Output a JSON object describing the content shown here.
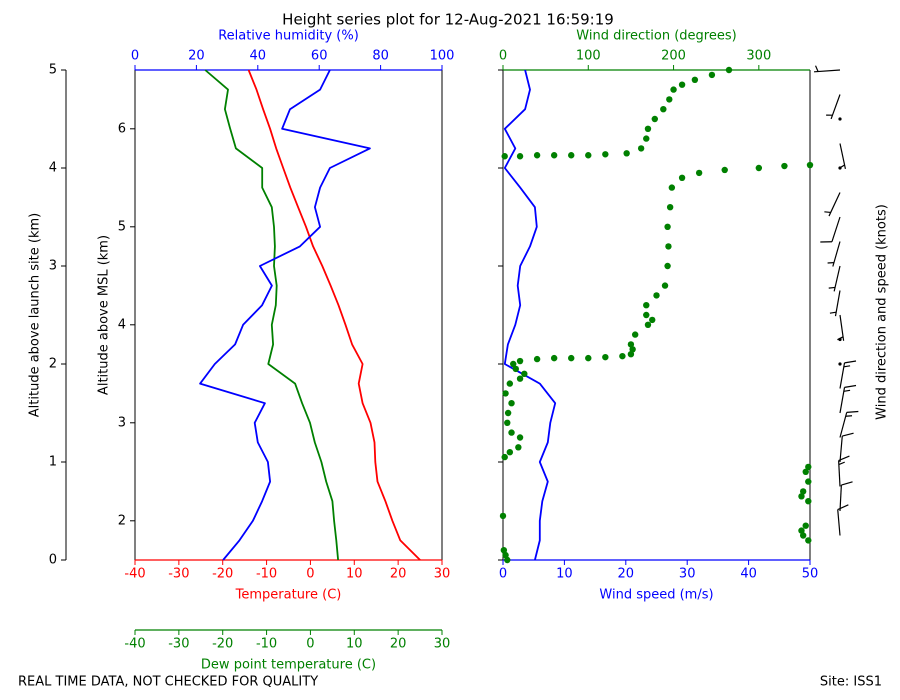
{
  "title": "Height series plot for 12-Aug-2021 16:59:19",
  "chart_data": [
    {
      "type": "profile",
      "y_axes": [
        {
          "label": "Altitude above launch site (km)",
          "ylim": [
            0,
            5
          ],
          "yticks": [
            0,
            1,
            2,
            3,
            4,
            5
          ],
          "placement": "outer"
        },
        {
          "label": "Altitude above MSL (km)",
          "ylim": [
            1.6,
            6.6
          ],
          "yticks": [
            2,
            3,
            4,
            5,
            6
          ],
          "placement": "spine"
        }
      ],
      "x_axes": [
        {
          "label": "Temperature (C)",
          "xlim": [
            -40,
            30
          ],
          "xticks": [
            -40,
            -30,
            -20,
            -10,
            0,
            10,
            20,
            30
          ],
          "color": "#ff0000",
          "side": "bottom"
        },
        {
          "label": "Dew point temperature (C)",
          "xlim": [
            -40,
            30
          ],
          "xticks": [
            -40,
            -30,
            -20,
            -10,
            0,
            10,
            20,
            30
          ],
          "color": "#008000",
          "side": "bottom"
        },
        {
          "label": "Relative humidity (%)",
          "xlim": [
            0,
            100
          ],
          "xticks": [
            0,
            20,
            40,
            60,
            80,
            100
          ],
          "color": "#0000ff",
          "side": "top"
        }
      ],
      "altitude": [
        0,
        0.2,
        0.4,
        0.6,
        0.8,
        1.0,
        1.2,
        1.4,
        1.6,
        1.8,
        2.0,
        2.2,
        2.4,
        2.6,
        2.8,
        3.0,
        3.2,
        3.4,
        3.6,
        3.8,
        4.0,
        4.2,
        4.4,
        4.6,
        4.8,
        5.0
      ],
      "series": [
        {
          "axis": 0,
          "mode": "line",
          "color": "#ff0000",
          "values": [
            25,
            20.5,
            18.7,
            17.1,
            15.3,
            14.8,
            14.6,
            13.7,
            11.9,
            11.0,
            11.9,
            9.5,
            8.0,
            6.4,
            4.6,
            2.7,
            0.6,
            -1.0,
            -2.8,
            -4.6,
            -6.2,
            -7.8,
            -9.2,
            -10.8,
            -12.3,
            -14.1
          ]
        },
        {
          "axis": 1,
          "mode": "line",
          "color": "#008000",
          "values": [
            6.3,
            5.9,
            5.4,
            5.0,
            3.6,
            2.5,
            1.0,
            -0.1,
            -1.9,
            -3.5,
            -9.6,
            -8.5,
            -8.8,
            -7.9,
            -7.7,
            -8.3,
            -8.1,
            -8.3,
            -8.8,
            -11.0,
            -11.0,
            -17.0,
            -18.3,
            -19.5,
            -18.8,
            -24
          ]
        },
        {
          "axis": 2,
          "mode": "line",
          "color": "#0000ff",
          "values": [
            28.7,
            34,
            38.4,
            41.4,
            44,
            43.3,
            40,
            39,
            42.3,
            21.2,
            26,
            32.6,
            35.2,
            41.4,
            44.6,
            40.7,
            53.7,
            60.3,
            58.6,
            60.3,
            63.5,
            76.5,
            47.9,
            50.5,
            60.3,
            63.5
          ]
        }
      ]
    },
    {
      "type": "profile",
      "y_axes": [
        {
          "ylim": [
            0,
            5
          ],
          "yticks": [
            0,
            1,
            2,
            3,
            4,
            5
          ],
          "placement": "spine",
          "tick_labels": false
        }
      ],
      "x_axes": [
        {
          "label": "Wind speed (m/s)",
          "xlim": [
            0,
            50
          ],
          "xticks": [
            0,
            10,
            20,
            30,
            40,
            50
          ],
          "color": "#0000ff",
          "side": "bottom"
        },
        {
          "label": "Wind direction (degrees)",
          "xlim": [
            0,
            360
          ],
          "xticks": [
            0,
            100,
            200,
            300
          ],
          "color": "#008000",
          "side": "top"
        }
      ],
      "altitude": [
        0,
        0.2,
        0.4,
        0.6,
        0.8,
        1.0,
        1.2,
        1.4,
        1.6,
        1.8,
        2.0,
        2.2,
        2.4,
        2.6,
        2.8,
        3.0,
        3.2,
        3.4,
        3.6,
        3.8,
        4.0,
        4.2,
        4.4,
        4.6,
        4.8,
        5.0
      ],
      "series": [
        {
          "axis": 0,
          "mode": "line",
          "color": "#0000ff",
          "values": [
            5.2,
            6.0,
            6.0,
            6.4,
            7.3,
            6.0,
            7.3,
            7.7,
            8.5,
            6.0,
            0.3,
            0.8,
            2.0,
            2.8,
            2.4,
            2.8,
            4.4,
            5.5,
            5.2,
            2.8,
            0.3,
            2.0,
            0.3,
            3.6,
            4.4,
            3.6
          ]
        },
        {
          "axis": 1,
          "mode": "dots",
          "color": "#008000",
          "altitude": [
            0.0,
            0.05,
            0.1,
            0.2,
            0.25,
            0.3,
            0.35,
            0.45,
            0.6,
            0.65,
            0.7,
            0.8,
            0.9,
            0.95,
            1.05,
            1.1,
            1.15,
            1.25,
            1.3,
            1.4,
            1.5,
            1.6,
            1.7,
            1.8,
            1.85,
            1.9,
            1.95,
            2.0,
            2.03,
            2.05,
            2.06,
            2.06,
            2.06,
            2.07,
            2.08,
            2.1,
            2.15,
            2.2,
            2.3,
            2.4,
            2.45,
            2.5,
            2.6,
            2.7,
            2.8,
            3.0,
            3.2,
            3.4,
            3.6,
            3.8,
            3.9,
            3.95,
            3.98,
            4.0,
            4.02,
            4.03,
            4.12,
            4.12,
            4.13,
            4.13,
            4.13,
            4.13,
            4.14,
            4.15,
            4.2,
            4.3,
            4.4,
            4.5,
            4.6,
            4.7,
            4.8,
            4.85,
            4.9,
            4.95,
            5.0
          ],
          "values": [
            5,
            3,
            1,
            358,
            352,
            350,
            355,
            0,
            358,
            350,
            352,
            358,
            355,
            358,
            2,
            8,
            18,
            20,
            10,
            5,
            6,
            10,
            3,
            8,
            20,
            25,
            15,
            12,
            20,
            40,
            60,
            80,
            100,
            120,
            140,
            150,
            152,
            150,
            155,
            170,
            175,
            168,
            168,
            180,
            190,
            193,
            194,
            193,
            196,
            198,
            210,
            230,
            260,
            300,
            330,
            360,
            2,
            20,
            40,
            60,
            80,
            100,
            120,
            145,
            162,
            168,
            170,
            178,
            188,
            195,
            200,
            210,
            225,
            245,
            265
          ]
        }
      ]
    },
    {
      "type": "barbs",
      "label": "Wind direction and speed (knots)",
      "ylim": [
        0,
        5
      ],
      "color": "#000000",
      "altitude": [
        0.25,
        0.5,
        0.75,
        1.0,
        1.25,
        1.5,
        1.75,
        2.0,
        2.25,
        2.5,
        2.75,
        3.0,
        3.25,
        3.5,
        3.75,
        4.0,
        4.25,
        4.5,
        4.75,
        5.0
      ],
      "direction": [
        355,
        3,
        357,
        5,
        15,
        10,
        10,
        25,
        150,
        172,
        190,
        193,
        196,
        198,
        205,
        300,
        168,
        180,
        200,
        266
      ],
      "speed": [
        12,
        12,
        14,
        12,
        14,
        15,
        14,
        2,
        2,
        5,
        5,
        5,
        9,
        11,
        8,
        1,
        4,
        1,
        8,
        7
      ]
    }
  ],
  "footer": {
    "note": "REAL TIME DATA, NOT CHECKED FOR QUALITY",
    "site": "Site: ISS1"
  }
}
